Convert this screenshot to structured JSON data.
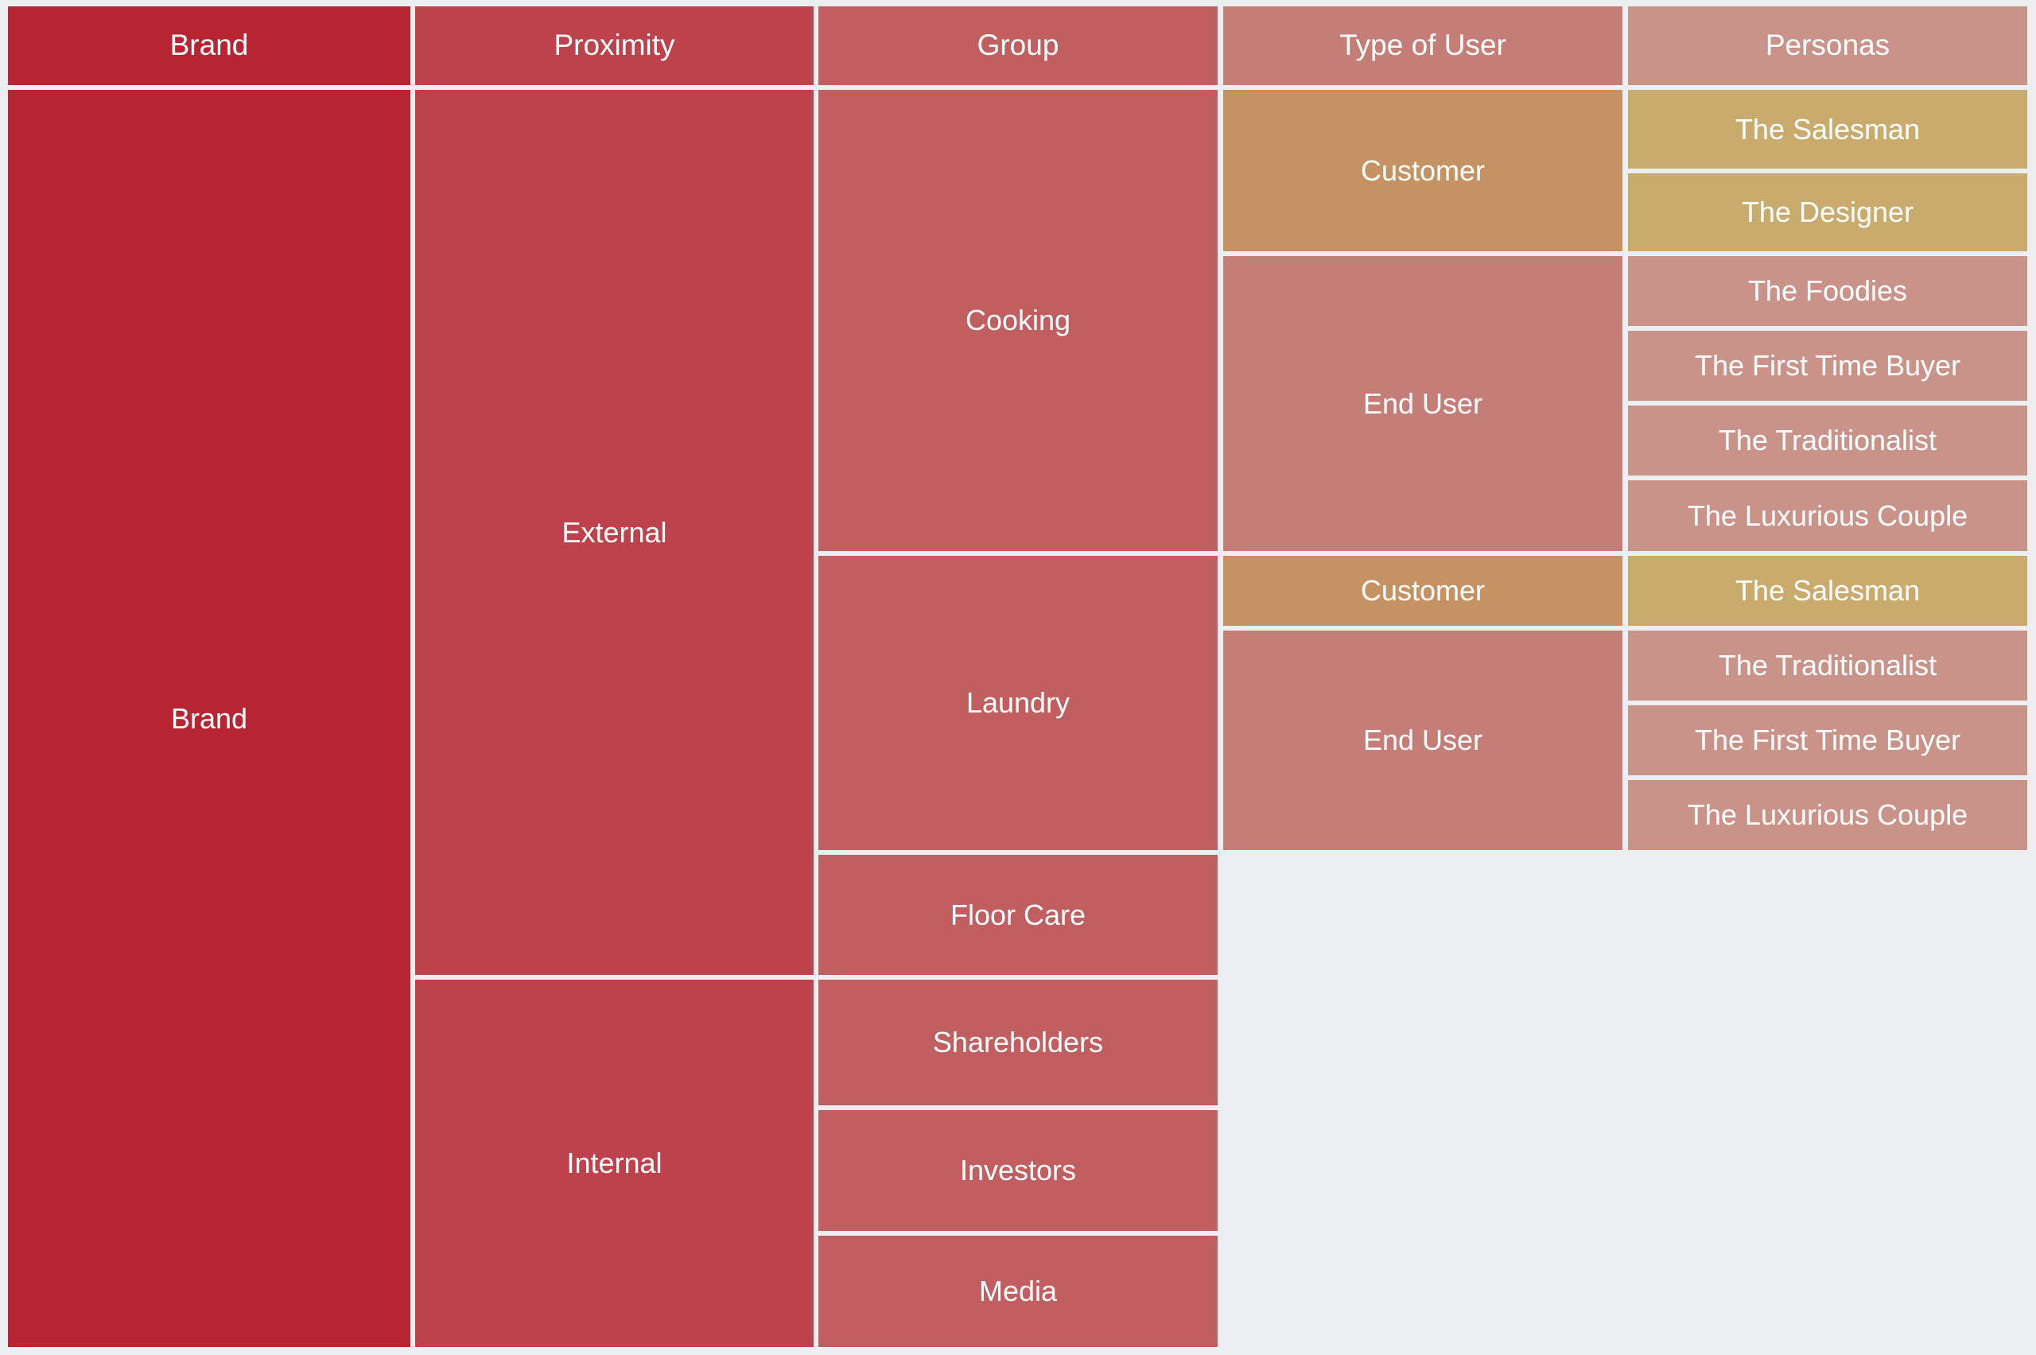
{
  "headers": {
    "brand": "Brand",
    "proximity": "Proximity",
    "group": "Group",
    "type_of_user": "Type of User",
    "personas": "Personas"
  },
  "brand": "Brand",
  "proximity": {
    "external": "External",
    "internal": "Internal"
  },
  "groups": {
    "cooking": "Cooking",
    "laundry": "Laundry",
    "floor_care": "Floor Care",
    "shareholders": "Shareholders",
    "investors": "Investors",
    "media": "Media"
  },
  "user_types": {
    "cooking_customer": "Customer",
    "cooking_end_user": "End User",
    "laundry_customer": "Customer",
    "laundry_end_user": "End User"
  },
  "personas": {
    "cooking": [
      "The Salesman",
      "The Designer",
      "The Foodies",
      "The First Time Buyer",
      "The Traditionalist",
      "The Luxurious Couple"
    ],
    "laundry": [
      "The Salesman",
      "The Traditionalist",
      "The First Time Buyer",
      "The Luxurious Couple"
    ]
  }
}
